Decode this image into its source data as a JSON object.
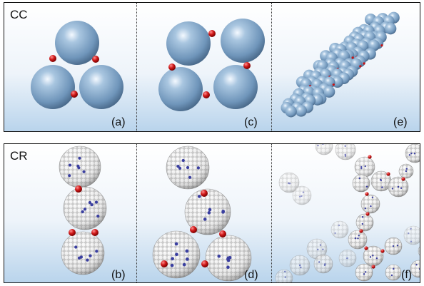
{
  "rows": [
    {
      "label": "CC",
      "panels": [
        {
          "label": "(a)"
        },
        {
          "label": "(c)"
        },
        {
          "label": "(e)"
        }
      ]
    },
    {
      "label": "CR",
      "panels": [
        {
          "label": "(b)"
        },
        {
          "label": "(d)"
        },
        {
          "label": "(f)"
        }
      ]
    }
  ],
  "colors": {
    "colloid_blue": "#7fa6c9",
    "colloid_white": "#e8e8e8",
    "linker_red": "#cc1111",
    "patch_blue": "#3a3fa0"
  }
}
